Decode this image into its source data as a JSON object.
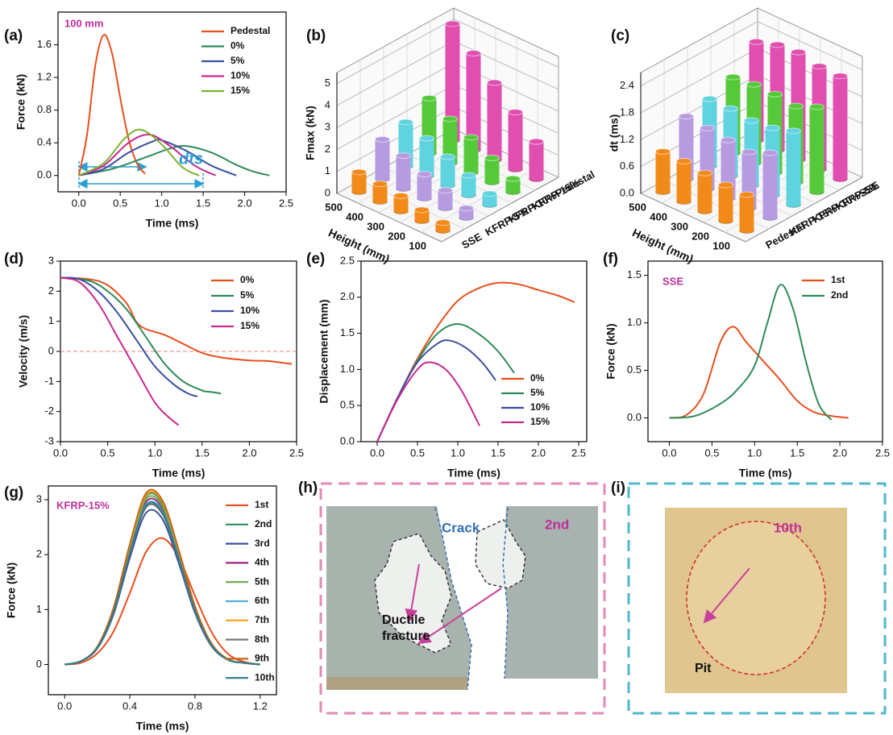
{
  "chart_data": [
    {
      "type": "line",
      "label": "(a)",
      "xlabel": "Time (ms)",
      "ylabel": "Force (kN)",
      "xlim": [
        -0.25,
        2.5
      ],
      "ylim": [
        -0.2,
        2.0
      ],
      "xticks": [
        {
          "value": 0,
          "label": "0.0"
        },
        0.5,
        {
          "value": 1,
          "label": "1.0"
        },
        1.5,
        {
          "value": 2,
          "label": "2.0"
        },
        2.5
      ],
      "yticks": [
        {
          "value": 0,
          "label": "0.0"
        },
        0.4,
        0.8,
        1.2,
        1.6
      ],
      "legend": "upper right",
      "annotations": [
        {
          "text": "100 mm",
          "color": "#c0309a"
        },
        {
          "text": "dts",
          "color": "#2a9fd6"
        }
      ],
      "series": [
        {
          "name": "Pedestal",
          "color": "#e8501e",
          "x": [
            0,
            0.1,
            0.2,
            0.3,
            0.4,
            0.5,
            0.6,
            0.7,
            0.8
          ],
          "values": [
            0,
            0.5,
            1.35,
            1.72,
            1.5,
            0.95,
            0.45,
            0.15,
            0.02
          ]
        },
        {
          "name": "0%",
          "color": "#2e8b57",
          "x": [
            0,
            0.4,
            0.8,
            1.1,
            1.3,
            1.6,
            1.9,
            2.1,
            2.3
          ],
          "values": [
            0,
            0.08,
            0.22,
            0.33,
            0.36,
            0.28,
            0.13,
            0.05,
            0
          ]
        },
        {
          "name": "5%",
          "color": "#3b4fa0",
          "x": [
            0,
            0.3,
            0.6,
            0.9,
            1.0,
            1.3,
            1.6,
            1.9
          ],
          "values": [
            0,
            0.08,
            0.28,
            0.42,
            0.43,
            0.3,
            0.12,
            0
          ]
        },
        {
          "name": "10%",
          "color": "#c8288f",
          "x": [
            0,
            0.3,
            0.6,
            0.85,
            1.1,
            1.4,
            1.65
          ],
          "values": [
            0,
            0.12,
            0.4,
            0.5,
            0.36,
            0.12,
            0
          ]
        },
        {
          "name": "15%",
          "color": "#7ab32e",
          "x": [
            0,
            0.3,
            0.55,
            0.75,
            1.0,
            1.25,
            1.45
          ],
          "values": [
            0,
            0.15,
            0.45,
            0.56,
            0.38,
            0.1,
            0
          ]
        }
      ]
    },
    {
      "type": "bar3d",
      "label": "(b)",
      "xlabel": "Height (mm)",
      "ylabel": "Fmax (kN)",
      "categories": [
        "500",
        "400",
        "300",
        "200",
        "100"
      ],
      "ylim": [
        0,
        5.5
      ],
      "yticks": [
        0,
        1,
        2,
        3,
        4,
        5
      ],
      "series": [
        {
          "name": "SSE",
          "color": "#f28a1a",
          "values": [
            0.9,
            0.8,
            0.7,
            0.5,
            0.36
          ]
        },
        {
          "name": "KFRP-5%",
          "color": "#b79be0",
          "values": [
            1.8,
            1.5,
            1.1,
            0.8,
            0.43
          ]
        },
        {
          "name": "KFRP-10%",
          "color": "#5fd3e0",
          "values": [
            2.0,
            1.7,
            1.3,
            0.9,
            0.5
          ]
        },
        {
          "name": "KFRP-15%",
          "color": "#55c93a",
          "values": [
            2.5,
            2.0,
            1.6,
            1.1,
            0.6
          ]
        },
        {
          "name": "Pedestal",
          "color": "#e04fb0",
          "values": [
            5.3,
            4.4,
            3.5,
            2.6,
            1.7
          ]
        }
      ]
    },
    {
      "type": "bar3d",
      "label": "(c)",
      "xlabel": "Height (mm)",
      "ylabel": "dt (ms)",
      "categories": [
        "500",
        "400",
        "300",
        "200",
        "100"
      ],
      "ylim": [
        0,
        2.7
      ],
      "yticks": [
        {
          "value": 0,
          "label": "0.0"
        },
        0.6,
        1.2,
        1.8,
        2.4
      ],
      "series": [
        {
          "name": "Pedestal",
          "color": "#f28a1a",
          "values": [
            0.9,
            0.9,
            0.85,
            0.8,
            0.8
          ]
        },
        {
          "name": "KFRP-15%",
          "color": "#b79be0",
          "values": [
            1.4,
            1.35,
            1.3,
            1.25,
            1.45
          ]
        },
        {
          "name": "KFRP-10%",
          "color": "#5fd3e0",
          "values": [
            1.5,
            1.5,
            1.45,
            1.5,
            1.65
          ]
        },
        {
          "name": "KFRP-5%",
          "color": "#55c93a",
          "values": [
            1.7,
            1.75,
            1.75,
            1.7,
            1.9
          ]
        },
        {
          "name": "SSE",
          "color": "#e04fb0",
          "values": [
            2.2,
            2.35,
            2.4,
            2.3,
            2.3
          ]
        }
      ]
    },
    {
      "type": "line",
      "label": "(d)",
      "xlabel": "Time (ms)",
      "ylabel": "Velocity (m/s)",
      "xlim": [
        0,
        2.5
      ],
      "ylim": [
        -3,
        3
      ],
      "xticks": [
        {
          "value": 0,
          "label": "0.0"
        },
        0.5,
        {
          "value": 1,
          "label": "1.0"
        },
        1.5,
        {
          "value": 2,
          "label": "2.0"
        },
        2.5
      ],
      "yticks": [
        -3,
        -2,
        -1,
        0,
        1,
        2,
        3
      ],
      "hline": 0,
      "legend": "upper right",
      "series": [
        {
          "name": "0%",
          "color": "#e8501e",
          "x": [
            0,
            0.3,
            0.5,
            0.7,
            0.8,
            0.9,
            1.1,
            1.3,
            1.5,
            1.7,
            2.0,
            2.2,
            2.45
          ],
          "values": [
            2.45,
            2.4,
            2.2,
            1.6,
            1.0,
            0.75,
            0.55,
            0.25,
            -0.05,
            -0.2,
            -0.3,
            -0.32,
            -0.42
          ]
        },
        {
          "name": "5%",
          "color": "#2e8b57",
          "x": [
            0,
            0.3,
            0.5,
            0.7,
            0.9,
            1.1,
            1.3,
            1.5,
            1.6,
            1.7
          ],
          "values": [
            2.45,
            2.35,
            2.0,
            1.4,
            0.5,
            -0.4,
            -1.0,
            -1.3,
            -1.35,
            -1.4
          ]
        },
        {
          "name": "10%",
          "color": "#3b4fa0",
          "x": [
            0,
            0.2,
            0.4,
            0.6,
            0.8,
            1.0,
            1.2,
            1.35,
            1.45
          ],
          "values": [
            2.45,
            2.4,
            2.0,
            1.3,
            0.4,
            -0.5,
            -1.1,
            -1.4,
            -1.5
          ]
        },
        {
          "name": "15%",
          "color": "#c8288f",
          "x": [
            0,
            0.2,
            0.4,
            0.6,
            0.8,
            1.0,
            1.15,
            1.25
          ],
          "values": [
            2.45,
            2.3,
            1.6,
            0.5,
            -0.6,
            -1.7,
            -2.2,
            -2.45
          ]
        }
      ]
    },
    {
      "type": "line",
      "label": "(e)",
      "xlabel": "Time (ms)",
      "ylabel": "Displacement (mm)",
      "xlim": [
        -0.2,
        2.6
      ],
      "ylim": [
        0,
        2.5
      ],
      "xticks": [
        {
          "value": 0,
          "label": "0.0"
        },
        0.5,
        {
          "value": 1,
          "label": "1.0"
        },
        1.5,
        {
          "value": 2,
          "label": "2.0"
        },
        2.5
      ],
      "yticks": [
        {
          "value": 0,
          "label": "0.0"
        },
        0.5,
        {
          "value": 1,
          "label": "1.0"
        },
        1.5,
        {
          "value": 2,
          "label": "2.0"
        },
        2.5
      ],
      "legend": "lower right",
      "series": [
        {
          "name": "0%",
          "color": "#e8501e",
          "x": [
            0,
            0.25,
            0.5,
            0.75,
            1.0,
            1.25,
            1.5,
            1.75,
            2.0,
            2.25,
            2.45
          ],
          "values": [
            0,
            0.6,
            1.15,
            1.6,
            1.95,
            2.12,
            2.2,
            2.18,
            2.1,
            2.02,
            1.93
          ]
        },
        {
          "name": "5%",
          "color": "#2e8b57",
          "x": [
            0,
            0.25,
            0.5,
            0.75,
            1.0,
            1.25,
            1.5,
            1.7
          ],
          "values": [
            0,
            0.6,
            1.12,
            1.5,
            1.63,
            1.5,
            1.25,
            0.95
          ]
        },
        {
          "name": "10%",
          "color": "#3b4fa0",
          "x": [
            0,
            0.25,
            0.5,
            0.75,
            0.9,
            1.1,
            1.3,
            1.47
          ],
          "values": [
            0,
            0.6,
            1.1,
            1.36,
            1.4,
            1.3,
            1.1,
            0.85
          ]
        },
        {
          "name": "15%",
          "color": "#c8288f",
          "x": [
            0,
            0.25,
            0.5,
            0.65,
            0.85,
            1.05,
            1.27
          ],
          "values": [
            0,
            0.58,
            1.0,
            1.1,
            1.0,
            0.7,
            0.22
          ]
        }
      ]
    },
    {
      "type": "line",
      "label": "(f)",
      "xlabel": "Time (ms)",
      "ylabel": "Force (kN)",
      "xlim": [
        -0.25,
        2.5
      ],
      "ylim": [
        -0.25,
        1.65
      ],
      "xticks": [
        {
          "value": 0,
          "label": "0.0"
        },
        0.5,
        {
          "value": 1,
          "label": "1.0"
        },
        1.5,
        {
          "value": 2,
          "label": "2.0"
        },
        2.5
      ],
      "yticks": [
        {
          "value": 0,
          "label": "0.0"
        },
        0.5,
        {
          "value": 1,
          "label": "1.0"
        },
        1.5
      ],
      "legend": "upper right",
      "annotations": [
        {
          "text": "SSE",
          "color": "#c0309a"
        }
      ],
      "series": [
        {
          "name": "1st",
          "color": "#e8501e",
          "x": [
            0,
            0.2,
            0.4,
            0.6,
            0.75,
            0.9,
            1.1,
            1.3,
            1.5,
            1.7,
            1.9,
            2.1
          ],
          "values": [
            0,
            0.03,
            0.25,
            0.8,
            0.96,
            0.8,
            0.6,
            0.4,
            0.18,
            0.06,
            0.02,
            0
          ]
        },
        {
          "name": "2nd",
          "color": "#2e8b57",
          "x": [
            0,
            0.3,
            0.6,
            0.8,
            1.0,
            1.15,
            1.3,
            1.45,
            1.6,
            1.75,
            1.9
          ],
          "values": [
            0,
            0.02,
            0.15,
            0.3,
            0.55,
            1.0,
            1.4,
            1.15,
            0.6,
            0.15,
            -0.02
          ]
        }
      ]
    },
    {
      "type": "line",
      "label": "(g)",
      "xlabel": "Time (ms)",
      "ylabel": "Force (kN)",
      "xlim": [
        -0.1,
        1.3
      ],
      "ylim": [
        -0.55,
        3.25
      ],
      "xticks": [
        {
          "value": 0,
          "label": "0.0"
        },
        0.4,
        0.8,
        1.2
      ],
      "yticks": [
        0,
        1,
        2,
        3
      ],
      "legend": "upper right",
      "annotations": [
        {
          "text": "KFRP-15%",
          "color": "#c0309a"
        }
      ],
      "x": [
        0,
        0.1,
        0.2,
        0.3,
        0.4,
        0.5,
        0.6,
        0.7,
        0.8,
        0.9,
        1.0,
        1.1,
        1.2
      ],
      "series": [
        {
          "name": "1st",
          "color": "#e8501e",
          "values": [
            0,
            0.03,
            0.2,
            0.6,
            1.3,
            2.05,
            2.3,
            1.95,
            1.25,
            0.6,
            0.2,
            0.05,
            0
          ]
        },
        {
          "name": "2nd",
          "color": "#2e8b57",
          "values": [
            0,
            0.06,
            0.32,
            1.0,
            2.14,
            3.06,
            2.93,
            2.05,
            1.04,
            0.38,
            0.09,
            0.03,
            0
          ]
        },
        {
          "name": "3rd",
          "color": "#3b4fa0",
          "values": [
            0,
            0.06,
            0.29,
            0.91,
            1.94,
            2.76,
            2.65,
            1.85,
            0.94,
            0.34,
            0.09,
            0.03,
            0
          ]
        },
        {
          "name": "4th",
          "color": "#a0267f",
          "values": [
            0,
            0.06,
            0.31,
            0.98,
            2.07,
            2.96,
            2.84,
            1.98,
            1.01,
            0.37,
            0.09,
            0.03,
            0
          ]
        },
        {
          "name": "5th",
          "color": "#6aa84f",
          "values": [
            0,
            0.06,
            0.31,
            0.99,
            2.11,
            3.01,
            2.88,
            2.02,
            1.02,
            0.37,
            0.09,
            0.03,
            0
          ]
        },
        {
          "name": "6th",
          "color": "#4fb0d8",
          "values": [
            0,
            0.06,
            0.3,
            0.96,
            2.04,
            2.91,
            2.79,
            1.95,
            0.99,
            0.36,
            0.09,
            0.03,
            0
          ]
        },
        {
          "name": "7th",
          "color": "#f0a020",
          "values": [
            0,
            0.06,
            0.32,
            1.02,
            2.16,
            3.08,
            2.96,
            2.07,
            1.05,
            0.38,
            0.1,
            0.03,
            0
          ]
        },
        {
          "name": "8th",
          "color": "#777777",
          "values": [
            0,
            0.06,
            0.3,
            0.94,
            2.01,
            2.86,
            2.74,
            1.92,
            0.97,
            0.35,
            0.09,
            0.03,
            0
          ]
        },
        {
          "name": "9th",
          "color": "#c86414",
          "values": [
            0,
            0.06,
            0.32,
            1.03,
            2.19,
            3.12,
            2.99,
            2.09,
            1.06,
            0.39,
            0.1,
            0.03,
            0
          ]
        },
        {
          "name": "10th",
          "color": "#2e7d8c",
          "values": [
            0,
            0.06,
            0.3,
            0.95,
            2.03,
            2.89,
            2.77,
            1.94,
            0.98,
            0.36,
            0.09,
            0.03,
            0
          ]
        }
      ]
    }
  ],
  "images": [
    {
      "label": "(h)",
      "annotations": [
        "Crack",
        "2nd",
        "Ductile fracture"
      ]
    },
    {
      "label": "(i)",
      "annotations": [
        "10th",
        "Pit"
      ]
    }
  ]
}
